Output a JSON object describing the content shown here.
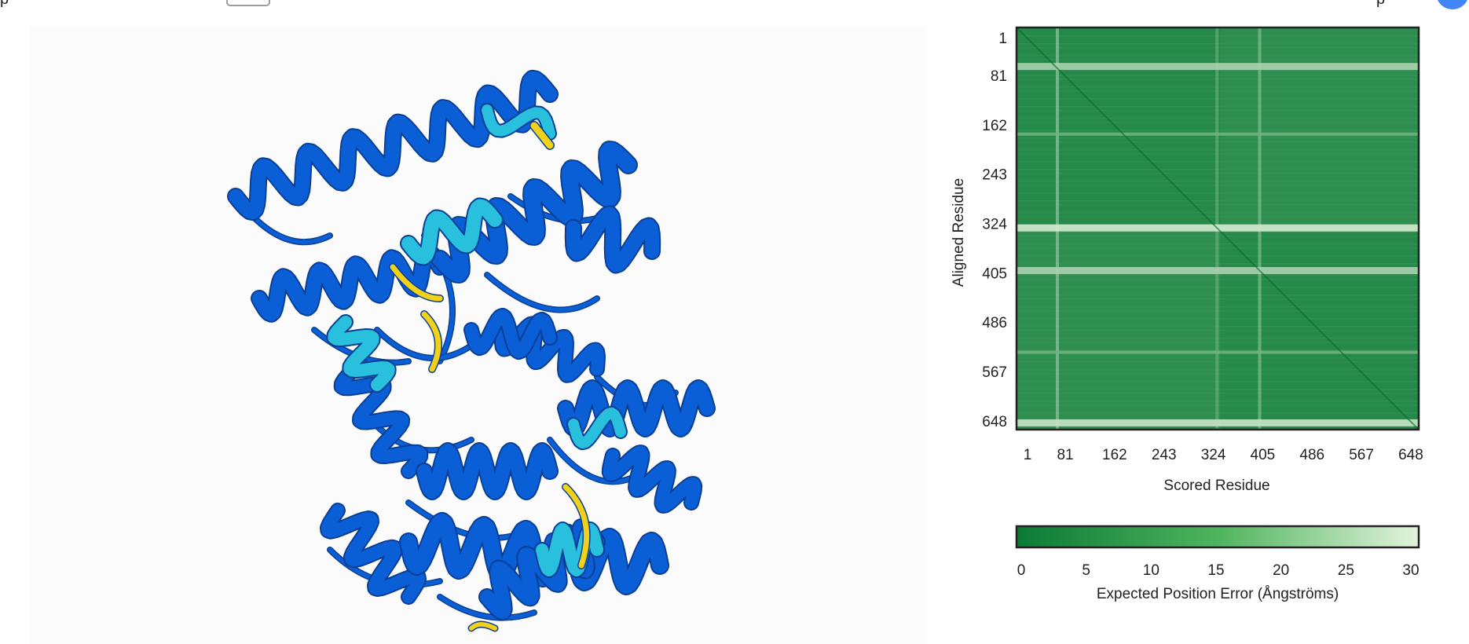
{
  "page": {
    "top_left_glyph": "p",
    "top_right_glyph": "p"
  },
  "colors": {
    "pae_low": "#0b7a35",
    "pae_high": "#e3f4dc",
    "ribbon_very_high": "#0a5fd6",
    "ribbon_confident": "#28c0dc",
    "ribbon_low": "#f2d11a",
    "avatar": "#4285f4"
  },
  "protein_viewer": {
    "label": "3D structure viewer"
  },
  "pae_plot": {
    "y_label": "Aligned Residue",
    "x_label": "Scored Residue",
    "ticks": [
      "1",
      "81",
      "162",
      "243",
      "324",
      "405",
      "486",
      "567",
      "648"
    ],
    "colorbar": {
      "ticks": [
        "0",
        "5",
        "10",
        "15",
        "20",
        "25",
        "30"
      ],
      "label": "Expected Position Error (Ångströms)"
    }
  },
  "chart_data": {
    "type": "heatmap",
    "xlabel": "Scored Residue",
    "ylabel": "Aligned Residue",
    "x_ticks": [
      1,
      81,
      162,
      243,
      324,
      405,
      486,
      567,
      648
    ],
    "y_ticks": [
      1,
      81,
      162,
      243,
      324,
      405,
      486,
      567,
      648
    ],
    "xlim": [
      1,
      661
    ],
    "ylim": [
      1,
      661
    ],
    "colorbar_range": [
      0,
      30
    ],
    "colorbar_label": "Expected Position Error (Ångströms)",
    "domains": [
      [
        1,
        336
      ],
      [
        336,
        661
      ]
    ],
    "high_error_bands": [
      {
        "residue": 65,
        "error": 22
      },
      {
        "residue": 176,
        "error": 14
      },
      {
        "residue": 330,
        "error": 28
      },
      {
        "residue": 400,
        "error": 22
      },
      {
        "residue": 534,
        "error": 14
      },
      {
        "residue": 650,
        "error": 26
      }
    ],
    "high_error_columns": [
      {
        "residue": 68,
        "error": 18
      },
      {
        "residue": 330,
        "error": 12
      },
      {
        "residue": 400,
        "error": 16
      }
    ]
  }
}
